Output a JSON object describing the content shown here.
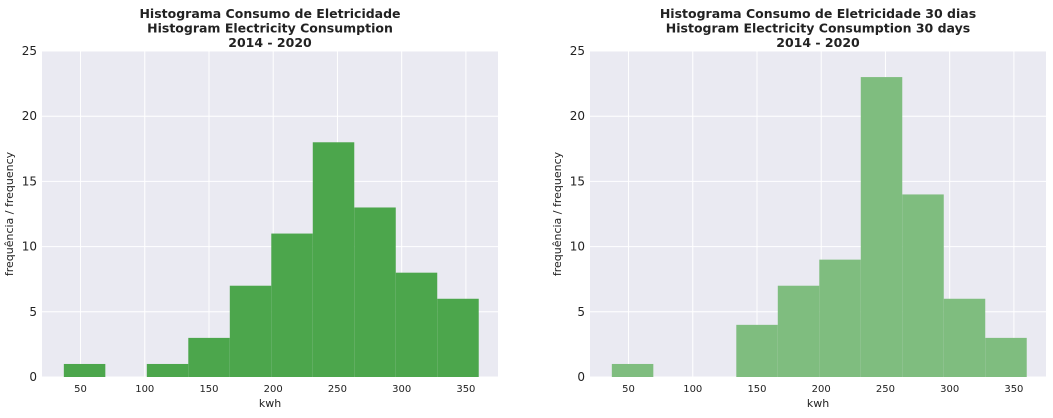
{
  "chart_data": [
    {
      "type": "bar",
      "title_lines": [
        "Histograma Consumo de Eletricidade",
        "Histogram Electricity Consumption",
        "2014 - 2020"
      ],
      "xlabel": "kwh",
      "ylabel": "frequência / frequency",
      "xlim": [
        20,
        375
      ],
      "ylim": [
        0,
        25
      ],
      "xticks": [
        50,
        100,
        150,
        200,
        250,
        300,
        350
      ],
      "yticks": [
        0,
        5,
        10,
        15,
        20,
        25
      ],
      "bins": [
        {
          "x0": 37,
          "x1": 69.3,
          "value": 1
        },
        {
          "x0": 69.3,
          "x1": 101.6,
          "value": 0
        },
        {
          "x0": 101.6,
          "x1": 133.9,
          "value": 1
        },
        {
          "x0": 133.9,
          "x1": 166.2,
          "value": 3
        },
        {
          "x0": 166.2,
          "x1": 198.5,
          "value": 7
        },
        {
          "x0": 198.5,
          "x1": 230.8,
          "value": 11
        },
        {
          "x0": 230.8,
          "x1": 263.1,
          "value": 18
        },
        {
          "x0": 263.1,
          "x1": 295.4,
          "value": 13
        },
        {
          "x0": 295.4,
          "x1": 327.7,
          "value": 8
        },
        {
          "x0": 327.7,
          "x1": 360,
          "value": 6
        }
      ],
      "bar_color": "#4ca64c",
      "grid": true
    },
    {
      "type": "bar",
      "title_lines": [
        "Histograma Consumo de Eletricidade 30 dias",
        "Histogram Electricity Consumption 30 days",
        "2014 - 2020"
      ],
      "xlabel": "kwh",
      "ylabel": "frequência / frequency",
      "xlim": [
        20,
        375
      ],
      "ylim": [
        0,
        25
      ],
      "xticks": [
        50,
        100,
        150,
        200,
        250,
        300,
        350
      ],
      "yticks": [
        0,
        5,
        10,
        15,
        20,
        25
      ],
      "bins": [
        {
          "x0": 37,
          "x1": 69.3,
          "value": 1
        },
        {
          "x0": 69.3,
          "x1": 101.6,
          "value": 0
        },
        {
          "x0": 101.6,
          "x1": 133.9,
          "value": 0
        },
        {
          "x0": 133.9,
          "x1": 166.2,
          "value": 4
        },
        {
          "x0": 166.2,
          "x1": 198.5,
          "value": 7
        },
        {
          "x0": 198.5,
          "x1": 230.8,
          "value": 9
        },
        {
          "x0": 230.8,
          "x1": 263.1,
          "value": 23
        },
        {
          "x0": 263.1,
          "x1": 295.4,
          "value": 14
        },
        {
          "x0": 295.4,
          "x1": 327.7,
          "value": 6
        },
        {
          "x0": 327.7,
          "x1": 360,
          "value": 3
        }
      ],
      "bar_color": "#7fbd7f",
      "grid": true
    }
  ]
}
